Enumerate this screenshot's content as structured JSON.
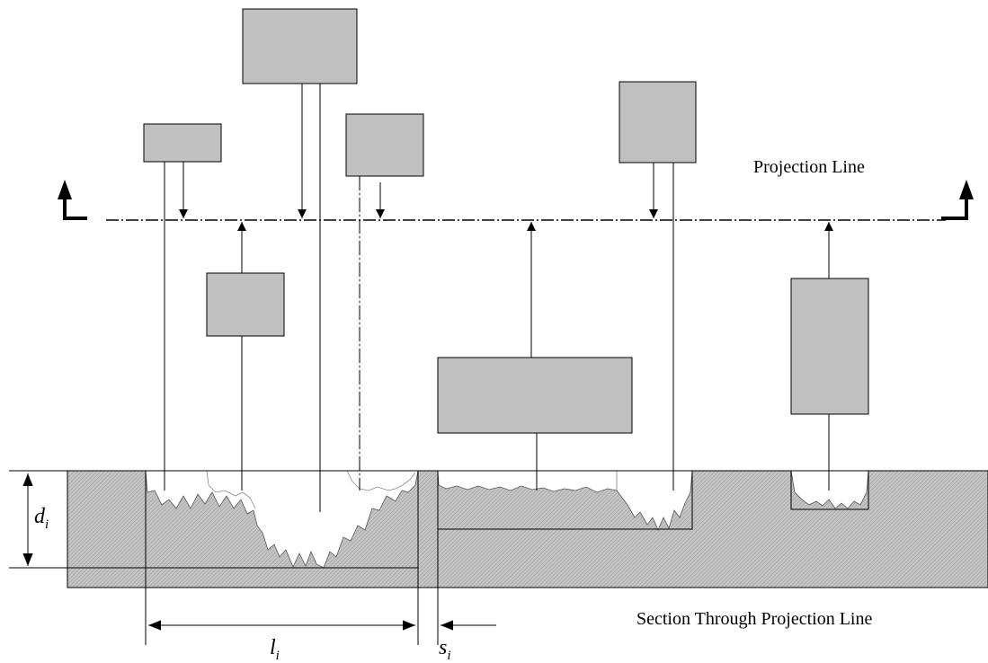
{
  "labels": {
    "projection_line": "Projection Line",
    "section": "Section Through Projection Line",
    "depth_base": "d",
    "depth_sub": "i",
    "length_base": "l",
    "length_sub": "i",
    "spacing_base": "s",
    "spacing_sub": "i"
  },
  "colors": {
    "flaw_fill": "#c0c0c0",
    "section_fill": "#bdbdbd",
    "line": "#000000"
  }
}
